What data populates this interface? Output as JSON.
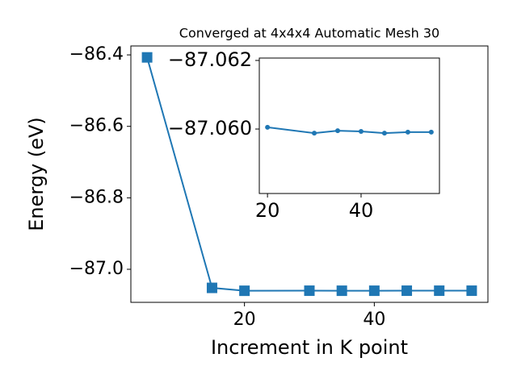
{
  "chart_data": [
    {
      "type": "line",
      "title": "Converged at 4x4x4 Automatic Mesh 30",
      "x_label": "Increment in K point",
      "y_label": "Energy (eV)",
      "x": [
        5,
        15,
        20,
        30,
        35,
        40,
        45,
        50,
        55
      ],
      "values": [
        -86.407,
        -87.052,
        -87.0601,
        -87.0599,
        -87.06,
        -87.06,
        -87.0599,
        -87.0599,
        -87.0599
      ],
      "color": "#1f77b4",
      "marker": "square",
      "xlim": [
        2.5,
        57.5
      ],
      "ylim": [
        -87.0925,
        -86.375
      ],
      "xticks": [
        20,
        40
      ],
      "yticks": [
        {
          "value": -86.4,
          "label": "−86.4"
        },
        {
          "value": -86.6,
          "label": "−86.6"
        },
        {
          "value": -86.8,
          "label": "−86.8"
        },
        {
          "value": -87.0,
          "label": "−87.0"
        }
      ]
    },
    {
      "type": "line",
      "x": [
        20,
        30,
        35,
        40,
        45,
        50,
        55
      ],
      "values": [
        -87.06005,
        -87.05988,
        -87.05995,
        -87.05993,
        -87.05988,
        -87.05991,
        -87.05991
      ],
      "color": "#1f77b4",
      "marker": "circle",
      "xlim": [
        18.25,
        56.75
      ],
      "ylim": [
        -87.05812,
        -87.06207
      ],
      "xticks": [
        20,
        40
      ],
      "yticks": [
        {
          "value": -87.062,
          "label": "−87.062"
        },
        {
          "value": -87.06,
          "label": "−87.060"
        }
      ]
    }
  ]
}
